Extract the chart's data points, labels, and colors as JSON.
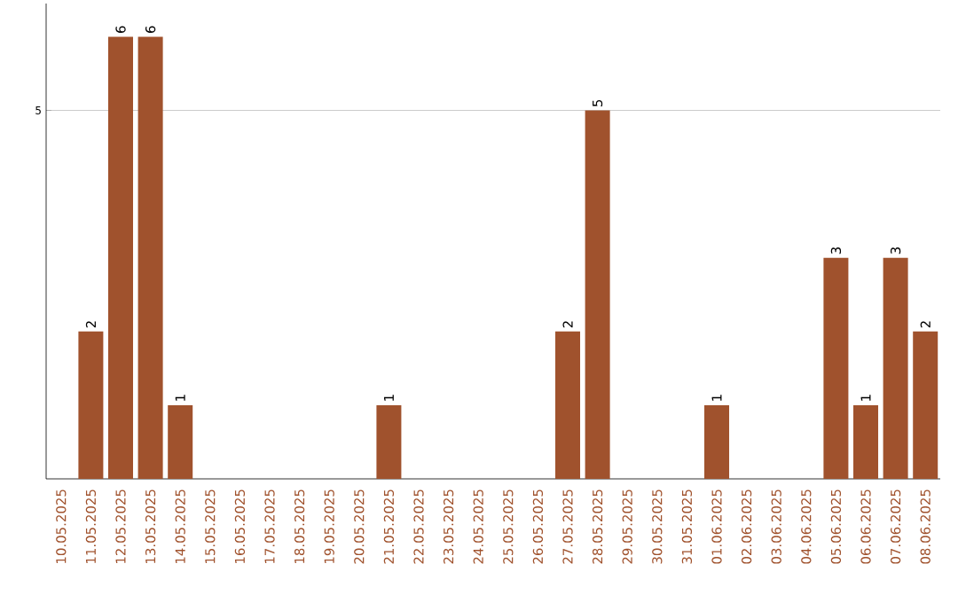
{
  "chart_data": {
    "type": "bar",
    "categories": [
      "10.05.2025",
      "11.05.2025",
      "12.05.2025",
      "13.05.2025",
      "14.05.2025",
      "15.05.2025",
      "16.05.2025",
      "17.05.2025",
      "18.05.2025",
      "19.05.2025",
      "20.05.2025",
      "21.05.2025",
      "22.05.2025",
      "23.05.2025",
      "24.05.2025",
      "25.05.2025",
      "26.05.2025",
      "27.05.2025",
      "28.05.2025",
      "29.05.2025",
      "30.05.2025",
      "31.05.2025",
      "01.06.2025",
      "02.06.2025",
      "03.06.2025",
      "04.06.2025",
      "05.06.2025",
      "06.06.2025",
      "07.06.2025",
      "08.06.2025"
    ],
    "values": [
      0,
      2,
      6,
      6,
      1,
      0,
      0,
      0,
      0,
      0,
      0,
      1,
      0,
      0,
      0,
      0,
      0,
      2,
      5,
      0,
      0,
      0,
      1,
      0,
      0,
      0,
      3,
      1,
      3,
      2
    ],
    "value_labels": [
      null,
      "2",
      "6",
      "6",
      "1",
      null,
      null,
      null,
      null,
      null,
      null,
      "1",
      null,
      null,
      null,
      null,
      null,
      "2",
      "5",
      null,
      null,
      null,
      "1",
      null,
      null,
      null,
      "3",
      "1",
      "3",
      "2"
    ],
    "color": "#a0522d",
    "ylim": [
      0,
      6.45
    ],
    "yticks": [
      5
    ],
    "grid": "y"
  }
}
